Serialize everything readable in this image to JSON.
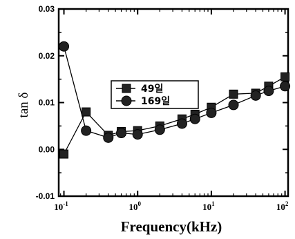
{
  "chart_data": {
    "type": "line",
    "title": "",
    "xlabel": "Frequency(kHz)",
    "ylabel": "tan δ",
    "x_scale": "log",
    "xlim": [
      0.085,
      110
    ],
    "ylim": [
      -0.01,
      0.03
    ],
    "x_ticks": [
      {
        "value": 0.1,
        "base": "10",
        "exp": "-1"
      },
      {
        "value": 1,
        "base": "10",
        "exp": "0"
      },
      {
        "value": 10,
        "base": "10",
        "exp": "1"
      },
      {
        "value": 100,
        "base": "10",
        "exp": "2"
      }
    ],
    "y_ticks": [
      {
        "value": 0.03,
        "label": "0.03"
      },
      {
        "value": 0.02,
        "label": "0.02"
      },
      {
        "value": 0.01,
        "label": "0.01"
      },
      {
        "value": 0.0,
        "label": "0.00"
      },
      {
        "value": -0.01,
        "label": "-0.01"
      }
    ],
    "grid": false,
    "legend_position": "center-left",
    "series": [
      {
        "name": "49일",
        "marker": "square",
        "x": [
          0.1,
          0.2,
          0.4,
          0.6,
          1,
          2,
          4,
          6,
          10,
          20,
          40,
          60,
          100
        ],
        "values": [
          -0.001,
          0.008,
          0.003,
          0.0038,
          0.004,
          0.005,
          0.0065,
          0.0075,
          0.009,
          0.0118,
          0.012,
          0.0135,
          0.0155
        ]
      },
      {
        "name": "169일",
        "marker": "circle",
        "x": [
          0.1,
          0.2,
          0.4,
          0.6,
          1,
          2,
          4,
          6,
          10,
          20,
          40,
          60,
          100
        ],
        "values": [
          0.022,
          0.004,
          0.0025,
          0.0035,
          0.0032,
          0.0042,
          0.0055,
          0.0065,
          0.0078,
          0.0095,
          0.0115,
          0.0125,
          0.0135
        ]
      }
    ]
  }
}
